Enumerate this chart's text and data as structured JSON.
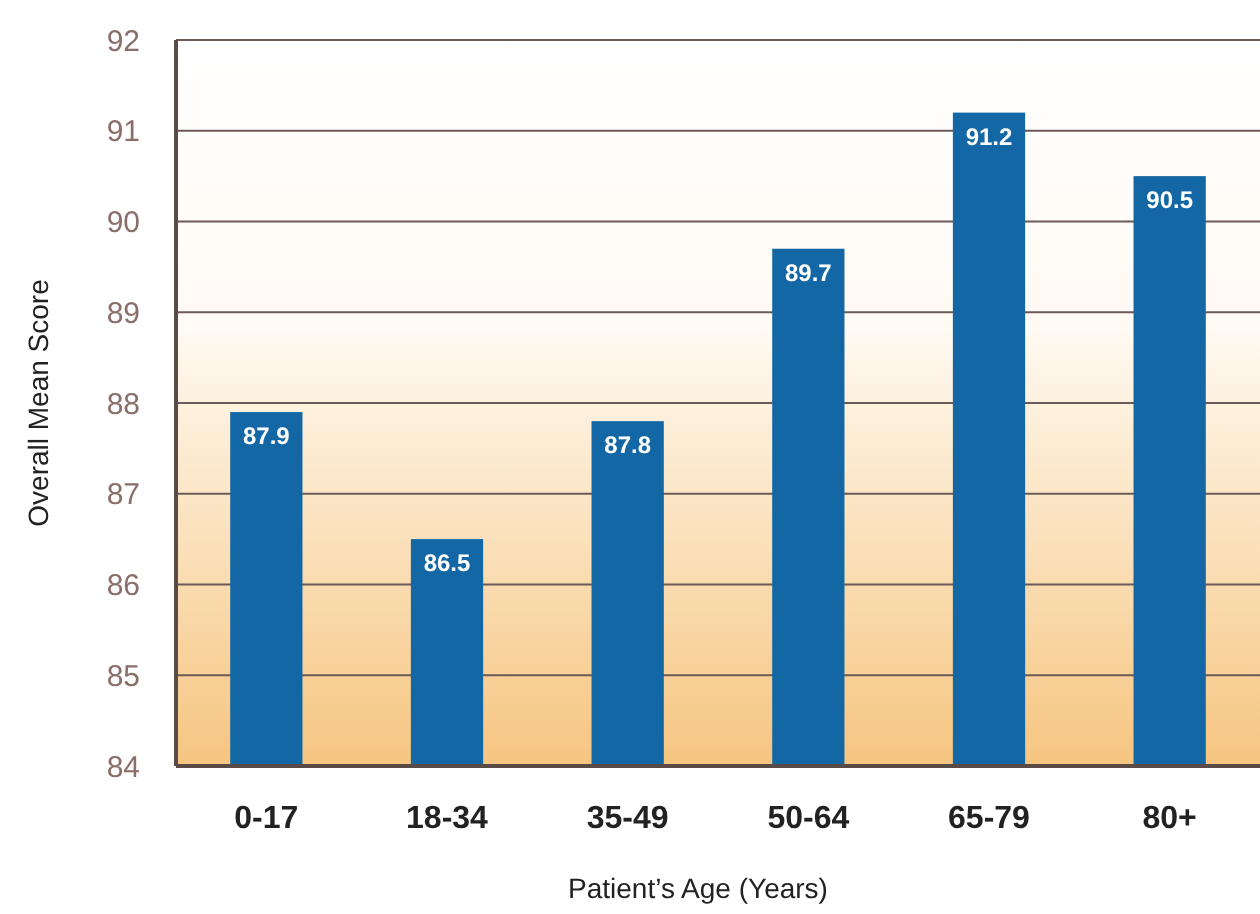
{
  "chart_data": {
    "type": "bar",
    "xlabel": "Patient’s Age (Years)",
    "ylabel": "Overall Mean Score",
    "categories": [
      "0-17",
      "18-34",
      "35-49",
      "50-64",
      "65-79",
      "80+"
    ],
    "values": [
      87.9,
      86.5,
      87.8,
      89.7,
      91.2,
      90.5
    ],
    "color": "#1367a5",
    "ylim": [
      84,
      92
    ],
    "yticks": [
      84,
      85,
      86,
      87,
      88,
      89,
      90,
      91,
      92
    ],
    "grid": "y",
    "data_labels": true
  }
}
